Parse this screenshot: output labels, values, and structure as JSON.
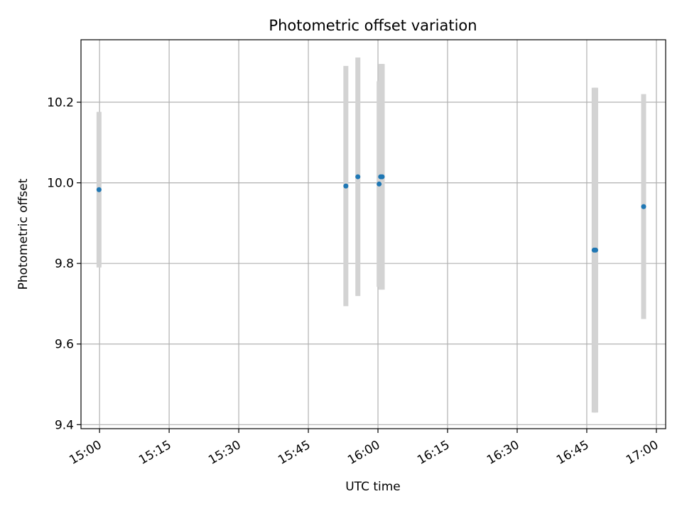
{
  "chart_data": {
    "type": "scatter",
    "title": "Photometric offset variation",
    "xlabel": "UTC time",
    "ylabel": "Photometric offset",
    "x_ticks": [
      "15:00",
      "15:15",
      "15:30",
      "15:45",
      "16:00",
      "16:15",
      "16:30",
      "16:45",
      "17:00"
    ],
    "xlim": [
      "14:56",
      "17:02"
    ],
    "y_ticks": [
      "9.4",
      "9.6",
      "9.8",
      "10.0",
      "10.2"
    ],
    "ylim": [
      9.39,
      10.355
    ],
    "grid": true,
    "legend": null,
    "points": [
      {
        "x": "14:59:53",
        "y": 9.983,
        "yerr": 0.193
      },
      {
        "x": "15:53:05",
        "y": 9.992,
        "yerr": 0.298
      },
      {
        "x": "15:55:40",
        "y": 10.015,
        "yerr": 0.296
      },
      {
        "x": "16:00:15",
        "y": 9.997,
        "yerr": 0.255
      },
      {
        "x": "16:00:35",
        "y": 10.015,
        "yerr": 0.28
      },
      {
        "x": "16:00:55",
        "y": 10.015,
        "yerr": 0.28
      },
      {
        "x": "16:46:35",
        "y": 9.833,
        "yerr": 0.403
      },
      {
        "x": "16:46:55",
        "y": 9.833,
        "yerr": 0.403
      },
      {
        "x": "16:57:15",
        "y": 9.941,
        "yerr": 0.279
      }
    ],
    "colors": {
      "points": "#1f77b4",
      "errorbars": "#d3d3d3",
      "grid": "#b0b0b0"
    }
  }
}
